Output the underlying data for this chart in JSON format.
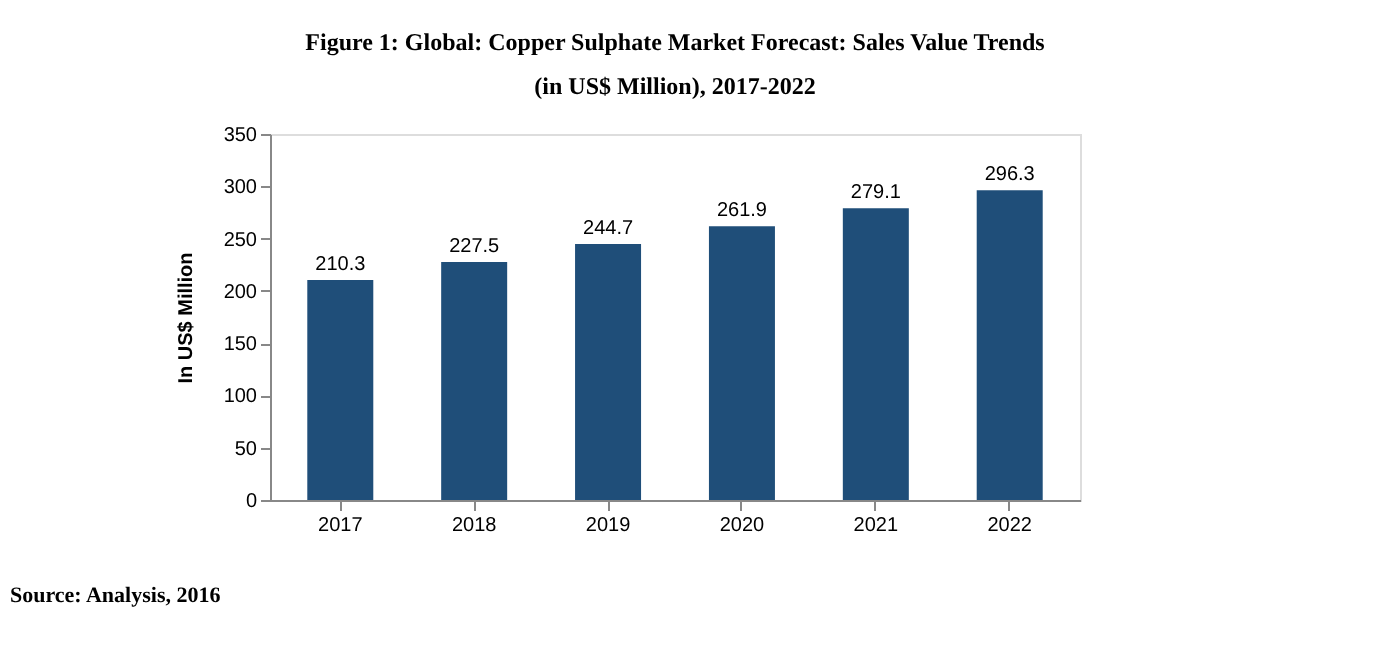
{
  "chart_data": {
    "type": "bar",
    "title": "Figure 1: Global: Copper Sulphate Market Forecast: Sales Value Trends (in US$ Million), 2017-2022",
    "ylabel": "In US$ Million",
    "categories": [
      "2017",
      "2018",
      "2019",
      "2020",
      "2021",
      "2022"
    ],
    "values": [
      210.3,
      227.5,
      244.7,
      261.9,
      279.1,
      296.3
    ],
    "color": "#1f4e79",
    "ylim": [
      0,
      350
    ],
    "yticks": [
      0,
      50,
      100,
      150,
      200,
      250,
      300,
      350
    ],
    "grid": false,
    "data_labels": true,
    "annotations": [
      "Source: Analysis, 2016"
    ]
  }
}
